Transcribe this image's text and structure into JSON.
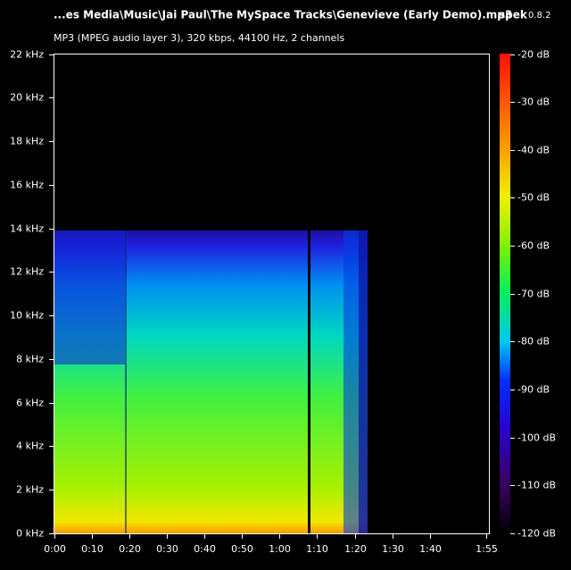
{
  "chart_data": {
    "type": "spectrogram",
    "title": "...es Media\\Music\\Jai Paul\\The MySpace Tracks\\Genevieve (Early Demo).mp3",
    "app": "spek",
    "version": "0.8.2",
    "subtitle": "MP3 (MPEG audio layer 3), 320 kbps, 44100 Hz, 2 channels",
    "xlim": [
      0,
      115
    ],
    "xticks": [
      {
        "value": 0,
        "label": "0:00"
      },
      {
        "value": 10,
        "label": "0:10"
      },
      {
        "value": 20,
        "label": "0:20"
      },
      {
        "value": 30,
        "label": "0:30"
      },
      {
        "value": 40,
        "label": "0:40"
      },
      {
        "value": 50,
        "label": "0:50"
      },
      {
        "value": 60,
        "label": "1:00"
      },
      {
        "value": 70,
        "label": "1:10"
      },
      {
        "value": 80,
        "label": "1:20"
      },
      {
        "value": 90,
        "label": "1:30"
      },
      {
        "value": 100,
        "label": "1:40"
      },
      {
        "value": 115,
        "label": "1:55"
      }
    ],
    "ylim": [
      0,
      22
    ],
    "yticks": [
      {
        "value": 0,
        "label": "0 kHz"
      },
      {
        "value": 2,
        "label": "2 kHz"
      },
      {
        "value": 4,
        "label": "4 kHz"
      },
      {
        "value": 6,
        "label": "6 kHz"
      },
      {
        "value": 8,
        "label": "8 kHz"
      },
      {
        "value": 10,
        "label": "10 kHz"
      },
      {
        "value": 12,
        "label": "12 kHz"
      },
      {
        "value": 14,
        "label": "14 kHz"
      },
      {
        "value": 16,
        "label": "16 kHz"
      },
      {
        "value": 18,
        "label": "18 kHz"
      },
      {
        "value": 20,
        "label": "20 kHz"
      },
      {
        "value": 22,
        "label": "22 kHz"
      }
    ],
    "zlim": [
      -120,
      -20
    ],
    "zticks": [
      {
        "value": -20,
        "label": "-20 dB"
      },
      {
        "value": -30,
        "label": "-30 dB"
      },
      {
        "value": -40,
        "label": "-40 dB"
      },
      {
        "value": -50,
        "label": "-50 dB"
      },
      {
        "value": -60,
        "label": "-60 dB"
      },
      {
        "value": -70,
        "label": "-70 dB"
      },
      {
        "value": -80,
        "label": "-80 dB"
      },
      {
        "value": -90,
        "label": "-90 dB"
      },
      {
        "value": -100,
        "label": "-100 dB"
      },
      {
        "value": -110,
        "label": "-110 dB"
      },
      {
        "value": -120,
        "label": "-120 dB"
      }
    ]
  }
}
